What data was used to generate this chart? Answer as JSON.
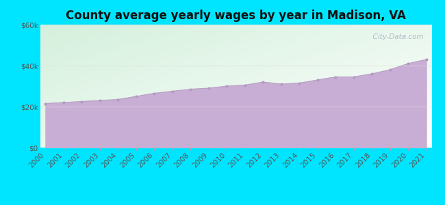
{
  "title": "County average yearly wages by year in Madison, VA",
  "years": [
    2000,
    2001,
    2002,
    2003,
    2004,
    2005,
    2006,
    2007,
    2008,
    2009,
    2010,
    2011,
    2012,
    2013,
    2014,
    2015,
    2016,
    2017,
    2018,
    2019,
    2020,
    2021
  ],
  "values": [
    21500,
    22000,
    22500,
    23000,
    23500,
    25000,
    26500,
    27500,
    28500,
    29000,
    30000,
    30500,
    32000,
    31000,
    31500,
    33000,
    34500,
    34500,
    36000,
    38000,
    41000,
    43000
  ],
  "ylim": [
    0,
    60000
  ],
  "yticks": [
    0,
    20000,
    40000,
    60000
  ],
  "ytick_labels": [
    "$0",
    "$20k",
    "$40k",
    "$60k"
  ],
  "fill_color": "#c8aed4",
  "line_color": "#b89ec4",
  "marker_color": "#b09cc0",
  "bg_outer": "#00e5ff",
  "bg_grad_topleft": "#d4f0dc",
  "bg_grad_bottomright": "#ffffff",
  "watermark_text": "  City-Data.com",
  "watermark_color": "#aab4c4",
  "title_fontsize": 12,
  "tick_fontsize": 7.5,
  "grid_color": "#dddddd"
}
